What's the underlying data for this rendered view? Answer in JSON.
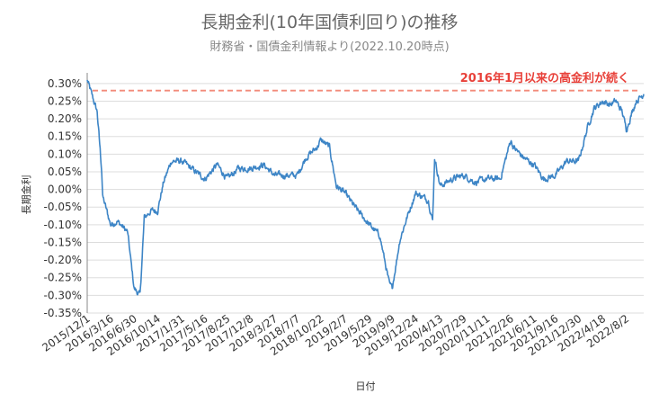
{
  "chart_data": {
    "type": "line",
    "title": "長期金利(10年国債利回り)の推移",
    "subtitle": "財務省・国債金利情報より(2022.10.20時点)",
    "xlabel": "日付",
    "ylabel": "長期金利",
    "annotation": "2016年1月以来の高金利が続く",
    "reference_line": 0.0028,
    "ylim": [
      -0.0035,
      0.0032
    ],
    "y_ticks": [
      -0.0035,
      -0.003,
      -0.0025,
      -0.002,
      -0.0015,
      -0.001,
      -0.0005,
      0.0,
      0.0005,
      0.001,
      0.0015,
      0.002,
      0.0025,
      0.003
    ],
    "y_tick_labels": [
      "-0.35%",
      "-0.30%",
      "-0.25%",
      "-0.20%",
      "-0.15%",
      "-0.10%",
      "-0.05%",
      "0.00%",
      "0.05%",
      "0.10%",
      "0.15%",
      "0.20%",
      "0.25%",
      "0.30%"
    ],
    "x_tick_labels": [
      "2015/12/1",
      "2016/3/16",
      "2016/6/30",
      "2016/10/14",
      "2017/1/31",
      "2017/5/16",
      "2017/8/25",
      "2017/12/8",
      "2018/3/27",
      "2018/7/7",
      "2018/10/22",
      "2019/2/7",
      "2019/5/29",
      "2019/9/9",
      "2019/12/24",
      "2020/4/13",
      "2020/7/29",
      "2020/11/11",
      "2021/2/26",
      "2021/6/11",
      "2021/9/16",
      "2021/12/30",
      "2022/4/18",
      "2022/8/2"
    ],
    "series": [
      {
        "color": "#3d85c6",
        "x": [
          "2015-12-01",
          "2016-01-15",
          "2016-02-05",
          "2016-02-09",
          "2016-03-16",
          "2016-04-15",
          "2016-05-31",
          "2016-06-30",
          "2016-07-27",
          "2016-08-15",
          "2016-09-15",
          "2016-10-14",
          "2016-11-10",
          "2016-12-15",
          "2017-01-31",
          "2017-03-15",
          "2017-05-16",
          "2017-07-10",
          "2017-08-25",
          "2017-10-15",
          "2017-12-08",
          "2018-02-05",
          "2018-03-27",
          "2018-05-20",
          "2018-07-07",
          "2018-08-15",
          "2018-10-05",
          "2018-10-22",
          "2018-11-30",
          "2018-12-31",
          "2019-02-07",
          "2019-03-25",
          "2019-05-29",
          "2019-07-15",
          "2019-08-28",
          "2019-09-09",
          "2019-10-15",
          "2019-11-15",
          "2019-12-24",
          "2020-02-20",
          "2020-03-10",
          "2020-03-19",
          "2020-04-13",
          "2020-06-08",
          "2020-07-29",
          "2020-09-20",
          "2020-11-11",
          "2021-01-10",
          "2021-02-26",
          "2021-03-10",
          "2021-04-25",
          "2021-06-11",
          "2021-07-25",
          "2021-09-16",
          "2021-11-05",
          "2021-12-30",
          "2022-02-10",
          "2022-03-10",
          "2022-04-18",
          "2022-05-20",
          "2022-06-17",
          "2022-07-15",
          "2022-08-02",
          "2022-09-15",
          "2022-10-20"
        ],
        "y": [
          0.0031,
          0.0022,
          0.0005,
          -0.0002,
          -0.001,
          -0.0009,
          -0.0012,
          -0.0028,
          -0.003,
          -0.0008,
          -0.0006,
          -0.0006,
          0.0002,
          0.0008,
          0.0008,
          0.0006,
          0.0003,
          0.0007,
          0.0003,
          0.0006,
          0.0006,
          0.0007,
          0.0004,
          0.0004,
          0.0004,
          0.0009,
          0.0012,
          0.0014,
          0.0012,
          0.0001,
          -0.0001,
          -0.0005,
          -0.001,
          -0.0013,
          -0.0027,
          -0.0028,
          -0.0014,
          -0.0008,
          -0.0001,
          -0.0003,
          -0.0009,
          0.0009,
          0.0001,
          0.0003,
          0.0004,
          0.0002,
          0.0003,
          0.0003,
          0.0014,
          0.0012,
          0.0009,
          0.0007,
          0.0003,
          0.0004,
          0.0008,
          0.0008,
          0.0018,
          0.0023,
          0.0025,
          0.0024,
          0.0025,
          0.0022,
          0.0017,
          0.0025,
          0.0027
        ]
      }
    ],
    "grid": true,
    "legend": "none"
  }
}
